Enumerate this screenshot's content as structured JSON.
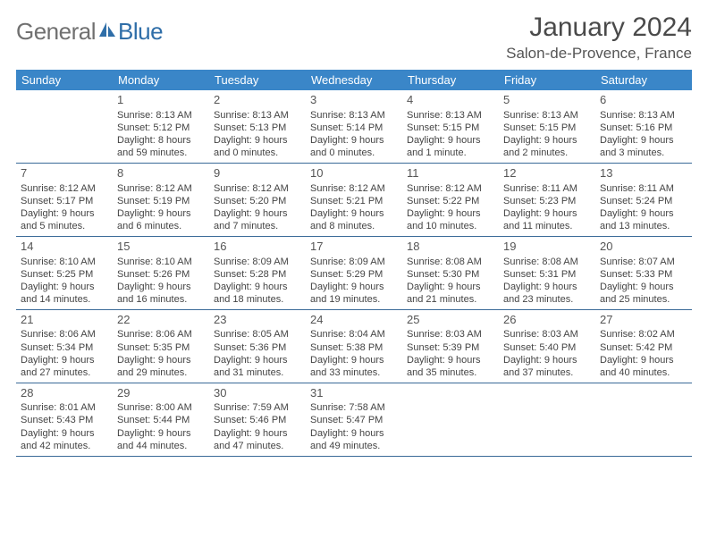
{
  "logo": {
    "text1": "General",
    "text2": "Blue"
  },
  "title": "January 2024",
  "location": "Salon-de-Provence, France",
  "colors": {
    "header_bar": "#3a86c8",
    "rule": "#3a6a98",
    "logo_gray": "#707070",
    "logo_blue": "#2f6ea8"
  },
  "dayHeaders": [
    "Sunday",
    "Monday",
    "Tuesday",
    "Wednesday",
    "Thursday",
    "Friday",
    "Saturday"
  ],
  "weeks": [
    [
      {
        "day": "",
        "sunrise": "",
        "sunset": "",
        "daylight": ""
      },
      {
        "day": "1",
        "sunrise": "Sunrise: 8:13 AM",
        "sunset": "Sunset: 5:12 PM",
        "daylight": "Daylight: 8 hours and 59 minutes."
      },
      {
        "day": "2",
        "sunrise": "Sunrise: 8:13 AM",
        "sunset": "Sunset: 5:13 PM",
        "daylight": "Daylight: 9 hours and 0 minutes."
      },
      {
        "day": "3",
        "sunrise": "Sunrise: 8:13 AM",
        "sunset": "Sunset: 5:14 PM",
        "daylight": "Daylight: 9 hours and 0 minutes."
      },
      {
        "day": "4",
        "sunrise": "Sunrise: 8:13 AM",
        "sunset": "Sunset: 5:15 PM",
        "daylight": "Daylight: 9 hours and 1 minute."
      },
      {
        "day": "5",
        "sunrise": "Sunrise: 8:13 AM",
        "sunset": "Sunset: 5:15 PM",
        "daylight": "Daylight: 9 hours and 2 minutes."
      },
      {
        "day": "6",
        "sunrise": "Sunrise: 8:13 AM",
        "sunset": "Sunset: 5:16 PM",
        "daylight": "Daylight: 9 hours and 3 minutes."
      }
    ],
    [
      {
        "day": "7",
        "sunrise": "Sunrise: 8:12 AM",
        "sunset": "Sunset: 5:17 PM",
        "daylight": "Daylight: 9 hours and 5 minutes."
      },
      {
        "day": "8",
        "sunrise": "Sunrise: 8:12 AM",
        "sunset": "Sunset: 5:19 PM",
        "daylight": "Daylight: 9 hours and 6 minutes."
      },
      {
        "day": "9",
        "sunrise": "Sunrise: 8:12 AM",
        "sunset": "Sunset: 5:20 PM",
        "daylight": "Daylight: 9 hours and 7 minutes."
      },
      {
        "day": "10",
        "sunrise": "Sunrise: 8:12 AM",
        "sunset": "Sunset: 5:21 PM",
        "daylight": "Daylight: 9 hours and 8 minutes."
      },
      {
        "day": "11",
        "sunrise": "Sunrise: 8:12 AM",
        "sunset": "Sunset: 5:22 PM",
        "daylight": "Daylight: 9 hours and 10 minutes."
      },
      {
        "day": "12",
        "sunrise": "Sunrise: 8:11 AM",
        "sunset": "Sunset: 5:23 PM",
        "daylight": "Daylight: 9 hours and 11 minutes."
      },
      {
        "day": "13",
        "sunrise": "Sunrise: 8:11 AM",
        "sunset": "Sunset: 5:24 PM",
        "daylight": "Daylight: 9 hours and 13 minutes."
      }
    ],
    [
      {
        "day": "14",
        "sunrise": "Sunrise: 8:10 AM",
        "sunset": "Sunset: 5:25 PM",
        "daylight": "Daylight: 9 hours and 14 minutes."
      },
      {
        "day": "15",
        "sunrise": "Sunrise: 8:10 AM",
        "sunset": "Sunset: 5:26 PM",
        "daylight": "Daylight: 9 hours and 16 minutes."
      },
      {
        "day": "16",
        "sunrise": "Sunrise: 8:09 AM",
        "sunset": "Sunset: 5:28 PM",
        "daylight": "Daylight: 9 hours and 18 minutes."
      },
      {
        "day": "17",
        "sunrise": "Sunrise: 8:09 AM",
        "sunset": "Sunset: 5:29 PM",
        "daylight": "Daylight: 9 hours and 19 minutes."
      },
      {
        "day": "18",
        "sunrise": "Sunrise: 8:08 AM",
        "sunset": "Sunset: 5:30 PM",
        "daylight": "Daylight: 9 hours and 21 minutes."
      },
      {
        "day": "19",
        "sunrise": "Sunrise: 8:08 AM",
        "sunset": "Sunset: 5:31 PM",
        "daylight": "Daylight: 9 hours and 23 minutes."
      },
      {
        "day": "20",
        "sunrise": "Sunrise: 8:07 AM",
        "sunset": "Sunset: 5:33 PM",
        "daylight": "Daylight: 9 hours and 25 minutes."
      }
    ],
    [
      {
        "day": "21",
        "sunrise": "Sunrise: 8:06 AM",
        "sunset": "Sunset: 5:34 PM",
        "daylight": "Daylight: 9 hours and 27 minutes."
      },
      {
        "day": "22",
        "sunrise": "Sunrise: 8:06 AM",
        "sunset": "Sunset: 5:35 PM",
        "daylight": "Daylight: 9 hours and 29 minutes."
      },
      {
        "day": "23",
        "sunrise": "Sunrise: 8:05 AM",
        "sunset": "Sunset: 5:36 PM",
        "daylight": "Daylight: 9 hours and 31 minutes."
      },
      {
        "day": "24",
        "sunrise": "Sunrise: 8:04 AM",
        "sunset": "Sunset: 5:38 PM",
        "daylight": "Daylight: 9 hours and 33 minutes."
      },
      {
        "day": "25",
        "sunrise": "Sunrise: 8:03 AM",
        "sunset": "Sunset: 5:39 PM",
        "daylight": "Daylight: 9 hours and 35 minutes."
      },
      {
        "day": "26",
        "sunrise": "Sunrise: 8:03 AM",
        "sunset": "Sunset: 5:40 PM",
        "daylight": "Daylight: 9 hours and 37 minutes."
      },
      {
        "day": "27",
        "sunrise": "Sunrise: 8:02 AM",
        "sunset": "Sunset: 5:42 PM",
        "daylight": "Daylight: 9 hours and 40 minutes."
      }
    ],
    [
      {
        "day": "28",
        "sunrise": "Sunrise: 8:01 AM",
        "sunset": "Sunset: 5:43 PM",
        "daylight": "Daylight: 9 hours and 42 minutes."
      },
      {
        "day": "29",
        "sunrise": "Sunrise: 8:00 AM",
        "sunset": "Sunset: 5:44 PM",
        "daylight": "Daylight: 9 hours and 44 minutes."
      },
      {
        "day": "30",
        "sunrise": "Sunrise: 7:59 AM",
        "sunset": "Sunset: 5:46 PM",
        "daylight": "Daylight: 9 hours and 47 minutes."
      },
      {
        "day": "31",
        "sunrise": "Sunrise: 7:58 AM",
        "sunset": "Sunset: 5:47 PM",
        "daylight": "Daylight: 9 hours and 49 minutes."
      },
      {
        "day": "",
        "sunrise": "",
        "sunset": "",
        "daylight": ""
      },
      {
        "day": "",
        "sunrise": "",
        "sunset": "",
        "daylight": ""
      },
      {
        "day": "",
        "sunrise": "",
        "sunset": "",
        "daylight": ""
      }
    ]
  ]
}
